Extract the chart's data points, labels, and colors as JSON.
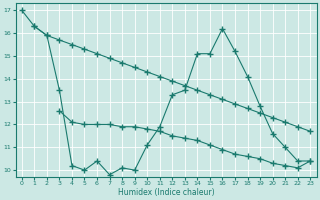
{
  "line1_x": [
    0,
    1,
    2,
    3,
    4,
    5,
    6,
    7,
    8,
    9,
    10,
    11,
    12,
    13,
    14,
    15,
    16,
    17,
    18,
    19,
    20,
    21,
    22,
    23
  ],
  "line1_y": [
    17.0,
    16.3,
    15.9,
    15.7,
    15.5,
    15.3,
    15.1,
    14.9,
    14.7,
    14.5,
    14.3,
    14.1,
    13.9,
    13.7,
    13.5,
    13.3,
    13.1,
    12.9,
    12.7,
    12.5,
    12.3,
    12.1,
    11.9,
    11.7
  ],
  "line2_x": [
    1,
    2,
    3,
    4,
    5,
    6,
    7,
    8,
    9,
    10,
    11,
    12,
    13,
    14,
    15,
    16,
    17,
    18,
    19,
    20,
    21,
    22,
    23
  ],
  "line2_y": [
    16.3,
    15.9,
    13.5,
    10.2,
    10.0,
    10.4,
    9.8,
    10.1,
    10.0,
    11.1,
    11.9,
    13.3,
    13.5,
    15.1,
    15.1,
    16.2,
    15.2,
    14.1,
    12.8,
    11.6,
    11.0,
    10.4,
    10.4
  ],
  "line3_x": [
    3,
    4,
    5,
    6,
    7,
    8,
    9,
    10,
    11,
    12,
    13,
    14,
    15,
    16,
    17,
    18,
    19,
    20,
    21,
    22,
    23
  ],
  "line3_y": [
    12.6,
    12.1,
    12.0,
    12.0,
    12.0,
    11.9,
    11.9,
    11.8,
    11.7,
    11.5,
    11.4,
    11.3,
    11.1,
    10.9,
    10.7,
    10.6,
    10.5,
    10.3,
    10.2,
    10.1,
    10.4
  ],
  "xlabel": "Humidex (Indice chaleur)",
  "xlim": [
    -0.5,
    23.5
  ],
  "ylim": [
    9.7,
    17.3
  ],
  "yticks": [
    10,
    11,
    12,
    13,
    14,
    15,
    16,
    17
  ],
  "xticks": [
    0,
    1,
    2,
    3,
    4,
    5,
    6,
    7,
    8,
    9,
    10,
    11,
    12,
    13,
    14,
    15,
    16,
    17,
    18,
    19,
    20,
    21,
    22,
    23
  ],
  "line_color": "#1a7a6e",
  "bg_color": "#cce8e4",
  "grid_color": "#b8d8d4"
}
